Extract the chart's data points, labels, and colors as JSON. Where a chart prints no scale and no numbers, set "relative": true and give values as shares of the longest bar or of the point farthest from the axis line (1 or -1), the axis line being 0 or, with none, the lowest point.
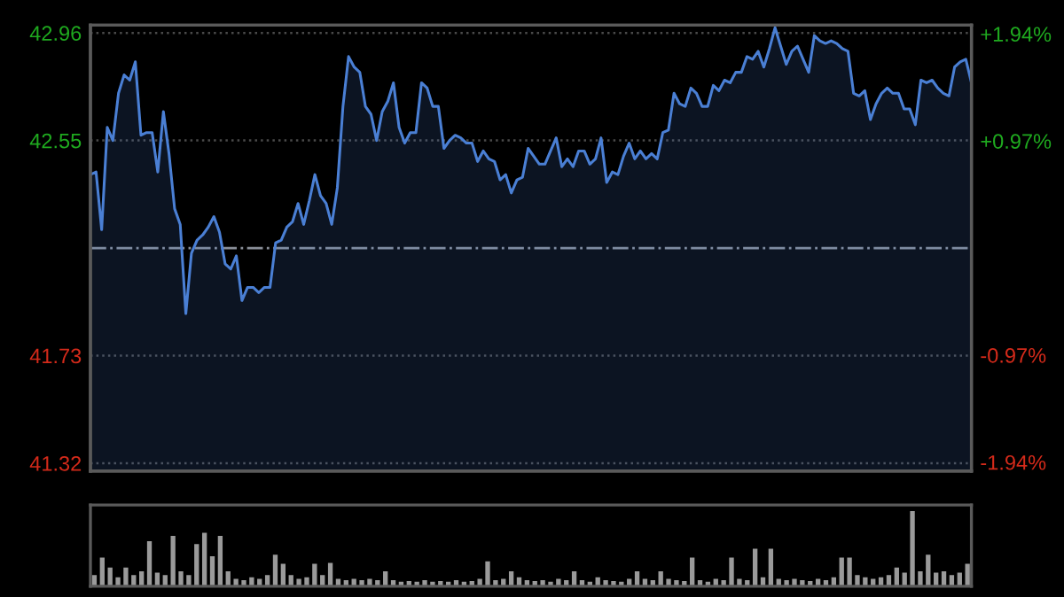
{
  "chart_data": [
    {
      "type": "area",
      "categories": [
        null,
        null,
        null,
        null,
        null,
        null,
        null,
        null,
        null,
        null,
        null,
        null,
        null,
        null,
        null,
        null,
        null,
        null,
        null,
        null,
        null,
        null,
        null,
        null,
        null,
        null,
        null,
        null,
        null,
        null,
        null,
        null,
        null,
        null,
        null,
        null,
        null,
        null,
        null,
        null,
        null,
        null,
        null,
        null,
        null,
        null,
        null,
        null,
        null,
        null,
        null,
        null,
        null,
        null,
        null,
        null,
        null,
        null,
        null,
        null,
        null,
        null,
        null,
        null,
        null,
        null,
        null,
        null,
        null,
        null,
        null,
        null,
        null,
        null,
        null,
        null,
        null,
        null,
        null,
        null,
        null,
        null,
        null,
        null,
        null,
        null,
        null,
        null,
        null,
        null,
        null,
        null,
        null,
        null,
        null,
        null,
        null,
        null,
        null,
        null,
        null,
        null,
        null,
        null,
        null,
        null,
        null,
        null,
        null,
        null,
        null,
        null,
        null,
        null,
        null,
        null,
        null,
        null,
        null,
        null,
        null,
        null,
        null,
        null,
        null,
        null,
        null,
        null,
        null,
        null,
        null,
        null,
        null,
        null,
        null,
        null,
        null,
        null,
        null,
        null,
        null,
        null,
        null,
        null,
        null,
        null,
        null,
        null,
        null,
        null,
        null,
        null,
        null,
        null,
        null,
        null,
        null,
        null
      ],
      "series": [
        {
          "color": "#4a7fd4",
          "values": [
            42.42,
            42.43,
            42.21,
            42.6,
            42.55,
            42.73,
            42.8,
            42.78,
            42.85,
            42.57,
            42.58,
            42.58,
            42.43,
            42.66,
            42.5,
            42.29,
            42.23,
            41.89,
            42.12,
            42.17,
            42.19,
            42.22,
            42.26,
            42.2,
            42.08,
            42.06,
            42.11,
            41.94,
            41.99,
            41.99,
            41.97,
            41.99,
            41.99,
            42.16,
            42.17,
            42.22,
            42.24,
            42.31,
            42.23,
            42.32,
            42.42,
            42.34,
            42.31,
            42.23,
            42.37,
            42.68,
            42.87,
            42.83,
            42.81,
            42.68,
            42.65,
            42.55,
            42.66,
            42.7,
            42.77,
            42.6,
            42.54,
            42.58,
            42.58,
            42.77,
            42.75,
            42.68,
            42.68,
            42.52,
            42.55,
            42.57,
            42.56,
            42.54,
            42.54,
            42.47,
            42.51,
            42.48,
            42.47,
            42.4,
            42.42,
            42.35,
            42.4,
            42.41,
            42.52,
            42.49,
            42.46,
            42.46,
            42.51,
            42.56,
            42.45,
            42.48,
            42.45,
            42.51,
            42.51,
            42.46,
            42.48,
            42.56,
            42.39,
            42.43,
            42.42,
            42.49,
            42.54,
            42.48,
            42.51,
            42.48,
            42.5,
            42.48,
            42.58,
            42.59,
            42.73,
            42.69,
            42.68,
            42.75,
            42.73,
            42.68,
            42.68,
            42.76,
            42.74,
            42.78,
            42.77,
            42.81,
            42.81,
            42.87,
            42.86,
            42.89,
            42.83,
            42.9,
            42.98,
            42.91,
            42.84,
            42.89,
            42.91,
            42.86,
            42.81,
            42.95,
            42.93,
            42.92,
            42.93,
            42.92,
            42.9,
            42.89,
            42.73,
            42.72,
            42.74,
            42.63,
            42.69,
            42.73,
            42.75,
            42.73,
            42.73,
            42.67,
            42.67,
            42.61,
            42.78,
            42.77,
            42.78,
            42.75,
            42.73,
            42.72,
            42.83,
            42.85,
            42.86,
            42.77
          ]
        }
      ],
      "ylim": [
        41.29,
        42.99
      ],
      "yticks": [
        41.32,
        41.73,
        42.55,
        42.96
      ],
      "y2lim": [
        -2.02,
        2.02
      ],
      "y2ticks": [
        {
          "value": -1.94,
          "label": "-1.94%"
        },
        {
          "value": -0.97,
          "label": "-0.97%"
        },
        {
          "value": 0.97,
          "label": "+0.97%"
        },
        {
          "value": 1.94,
          "label": "+1.94%"
        }
      ],
      "ref_lines": [
        {
          "axis": "y",
          "value": 42.14,
          "color": "#8a8f99",
          "line_style": "dashdot"
        }
      ],
      "grid": "y",
      "tick_labels": "y"
    },
    {
      "type": "bar",
      "relative": true,
      "color": "#9a9a9a",
      "categories": [
        null,
        null,
        null,
        null,
        null,
        null,
        null,
        null,
        null,
        null,
        null,
        null,
        null,
        null,
        null,
        null,
        null,
        null,
        null,
        null,
        null,
        null,
        null,
        null,
        null,
        null,
        null,
        null,
        null,
        null,
        null,
        null,
        null,
        null,
        null,
        null,
        null,
        null,
        null,
        null,
        null,
        null,
        null,
        null,
        null,
        null,
        null,
        null,
        null,
        null,
        null,
        null,
        null,
        null,
        null,
        null,
        null,
        null,
        null,
        null,
        null,
        null,
        null,
        null,
        null,
        null,
        null,
        null,
        null,
        null,
        null,
        null,
        null,
        null,
        null,
        null,
        null,
        null,
        null,
        null,
        null,
        null,
        null,
        null,
        null,
        null,
        null,
        null,
        null,
        null,
        null,
        null,
        null,
        null,
        null,
        null,
        null,
        null,
        null,
        null,
        null,
        null,
        null,
        null,
        null,
        null,
        null,
        null,
        null,
        null,
        null,
        null
      ],
      "values": [
        0.15,
        0.38,
        0.25,
        0.12,
        0.25,
        0.15,
        0.2,
        0.6,
        0.18,
        0.15,
        0.67,
        0.2,
        0.15,
        0.56,
        0.71,
        0.4,
        0.67,
        0.2,
        0.1,
        0.08,
        0.12,
        0.1,
        0.15,
        0.42,
        0.3,
        0.15,
        0.1,
        0.12,
        0.3,
        0.15,
        0.31,
        0.1,
        0.08,
        0.1,
        0.08,
        0.1,
        0.08,
        0.2,
        0.08,
        0.06,
        0.07,
        0.06,
        0.08,
        0.06,
        0.07,
        0.06,
        0.08,
        0.06,
        0.07,
        0.1,
        0.33,
        0.08,
        0.1,
        0.2,
        0.12,
        0.08,
        0.07,
        0.08,
        0.06,
        0.1,
        0.08,
        0.2,
        0.08,
        0.06,
        0.12,
        0.08,
        0.07,
        0.06,
        0.1,
        0.2,
        0.1,
        0.08,
        0.2,
        0.1,
        0.08,
        0.07,
        0.38,
        0.08,
        0.06,
        0.1,
        0.08,
        0.38,
        0.1,
        0.08,
        0.5,
        0.12,
        0.5,
        0.1,
        0.08,
        0.1,
        0.08,
        0.07,
        0.1,
        0.08,
        0.12,
        0.38,
        0.38,
        0.15,
        0.12,
        0.1,
        0.12,
        0.15,
        0.25,
        0.18,
        1,
        0.2,
        0.42,
        0.18,
        0.2,
        0.15,
        0.18,
        0.3
      ]
    }
  ]
}
